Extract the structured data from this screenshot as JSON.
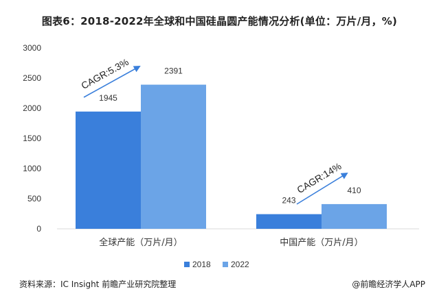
{
  "title": "图表6：2018-2022年全球和中国硅晶圆产能情况分析(单位：万片/月，%)",
  "chart_data": {
    "type": "bar",
    "categories": [
      "全球产能（万片/月）",
      "中国产能（万片/月）"
    ],
    "series": [
      {
        "name": "2018",
        "values": [
          1945,
          243
        ],
        "color": "#3a7fdb"
      },
      {
        "name": "2022",
        "values": [
          2391,
          410
        ],
        "color": "#6ba4e7"
      }
    ],
    "ylim": [
      0,
      3000
    ],
    "yticks": [
      0,
      500,
      1000,
      1500,
      2000,
      2500,
      3000
    ],
    "grid": false,
    "legend_position": "bottom",
    "annotations": [
      "CAGR:5.3%",
      "CAGR:14%"
    ],
    "arrow_color": "#3a7fdb"
  },
  "footer": {
    "source": "资料来源：IC Insight 前瞻产业研究院整理",
    "brand": "@前瞻经济学人APP"
  }
}
